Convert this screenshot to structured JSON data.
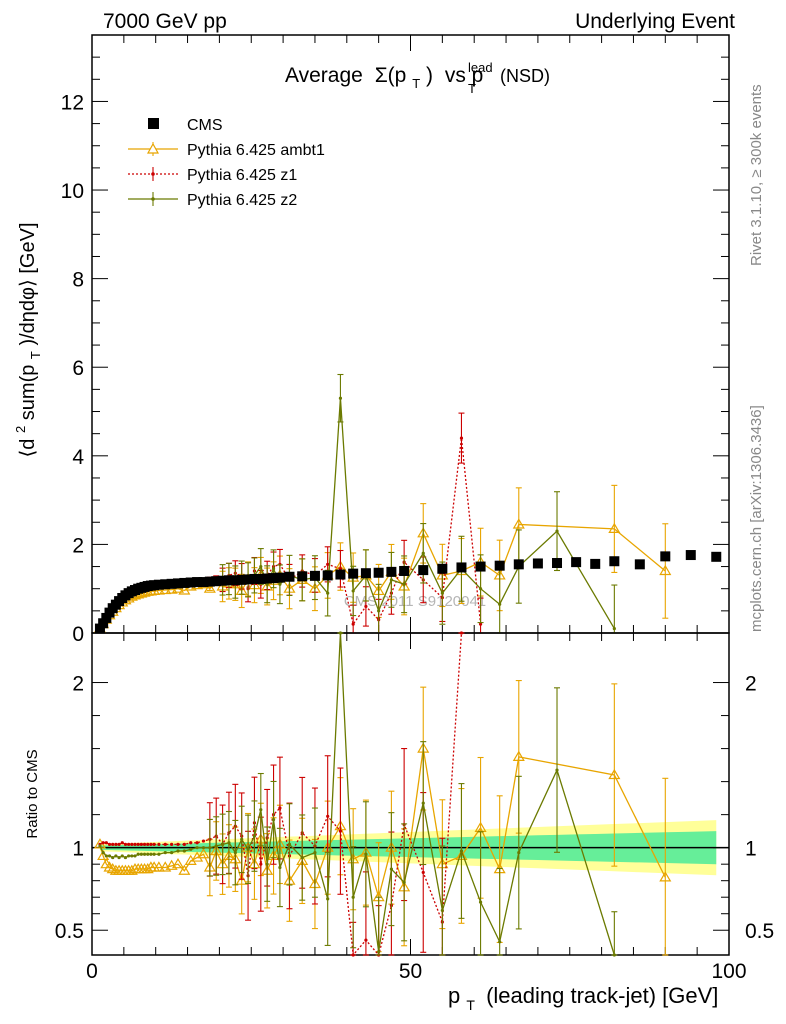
{
  "header": {
    "left": "7000 GeV pp",
    "right": "Underlying Event"
  },
  "side": {
    "rivet": "Rivet 3.1.10, ≥ 300k events",
    "source": "mcplots.cern.ch [arXiv:1306.3436]"
  },
  "watermark": "CMS 2011 S9120041",
  "chart_data": [
    {
      "type": "scatter",
      "title": {
        "text": "Average",
        "sigma": "Σ(p",
        "sub_t": "T",
        "close": ")",
        "vs": "vs p",
        "sup": "lead",
        "tail": "(NSD)"
      },
      "ylabel": {
        "open": "⟨d",
        "sup2": "2",
        "mid": " sum(p",
        "sub_t": "T",
        "tail": ")/dηdφ⟩ [GeV]"
      },
      "xlim": [
        0,
        100
      ],
      "ylim": [
        0,
        13.5
      ],
      "yticks": [
        "0",
        "2",
        "4",
        "6",
        "8",
        "10",
        "12"
      ],
      "legend_position": "top-left",
      "series": [
        {
          "name": "CMS",
          "color": "#000000",
          "marker": "square",
          "x": [
            1.25,
            1.75,
            2.25,
            2.75,
            3.25,
            3.75,
            4.25,
            4.75,
            5.25,
            5.75,
            6.25,
            6.75,
            7.25,
            7.75,
            8.25,
            8.75,
            9.25,
            9.75,
            10.5,
            11.5,
            12.5,
            13.5,
            14.5,
            15.5,
            16.5,
            17.5,
            18.5,
            19.5,
            20.5,
            21.5,
            22.5,
            23.5,
            24.5,
            25.5,
            26.5,
            27.5,
            28.5,
            29.5,
            31,
            33,
            35,
            37,
            39,
            41,
            43,
            45,
            47,
            49,
            52,
            55,
            58,
            61,
            64,
            67,
            70,
            73,
            76,
            79,
            82,
            86,
            90,
            94,
            98
          ],
          "y": [
            0.1,
            0.22,
            0.34,
            0.46,
            0.56,
            0.64,
            0.72,
            0.79,
            0.85,
            0.9,
            0.94,
            0.97,
            1.0,
            1.02,
            1.04,
            1.06,
            1.07,
            1.08,
            1.09,
            1.1,
            1.11,
            1.12,
            1.13,
            1.14,
            1.15,
            1.15,
            1.16,
            1.17,
            1.18,
            1.19,
            1.19,
            1.2,
            1.21,
            1.22,
            1.22,
            1.23,
            1.24,
            1.25,
            1.27,
            1.28,
            1.29,
            1.3,
            1.32,
            1.34,
            1.35,
            1.36,
            1.38,
            1.4,
            1.42,
            1.45,
            1.48,
            1.5,
            1.52,
            1.55,
            1.57,
            1.58,
            1.6,
            1.56,
            1.62,
            1.55,
            1.73,
            1.76,
            1.72
          ]
        },
        {
          "name": "Pythia 6.425 ambt1",
          "color": "#e8a500",
          "marker": "triangle",
          "x": [
            1.25,
            1.75,
            2.25,
            2.75,
            3.25,
            3.75,
            4.25,
            4.75,
            5.25,
            5.75,
            6.25,
            6.75,
            7.25,
            7.75,
            8.25,
            8.75,
            9.25,
            9.75,
            10.5,
            11.5,
            12.5,
            13.5,
            14.5,
            15.5,
            16.5,
            17.5,
            18.5,
            19.5,
            20.5,
            21.5,
            22.5,
            23.5,
            24.5,
            25.5,
            26.5,
            27.5,
            28.5,
            29.5,
            31,
            33,
            35,
            37,
            39,
            41,
            43,
            45,
            47,
            49,
            52,
            55,
            58,
            61,
            64,
            67,
            82,
            90
          ],
          "y": [
            0.1,
            0.2,
            0.3,
            0.4,
            0.48,
            0.56,
            0.63,
            0.69,
            0.74,
            0.78,
            0.82,
            0.85,
            0.87,
            0.89,
            0.91,
            0.93,
            0.94,
            0.95,
            0.96,
            0.97,
            0.98,
            1.0,
            0.96,
            1.05,
            1.08,
            1.1,
            1.0,
            1.15,
            1.05,
            1.12,
            1.1,
            0.95,
            1.22,
            1.08,
            1.3,
            1.05,
            1.18,
            1.3,
            1.0,
            1.2,
            1.0,
            1.3,
            1.5,
            1.25,
            1.3,
            0.95,
            1.38,
            1.05,
            2.25,
            1.3,
            1.4,
            1.6,
            1.3,
            2.45,
            2.35,
            1.4
          ]
        },
        {
          "name": "Pythia 6.425 z1",
          "color": "#cc0000",
          "marker": "dot",
          "x": [
            1.25,
            1.75,
            2.25,
            2.75,
            3.25,
            3.75,
            4.25,
            4.75,
            5.25,
            5.75,
            6.25,
            6.75,
            7.25,
            7.75,
            8.25,
            8.75,
            9.25,
            9.75,
            10.5,
            11.5,
            12.5,
            13.5,
            14.5,
            15.5,
            16.5,
            17.5,
            18.5,
            19.5,
            20.5,
            21.5,
            22.5,
            23.5,
            24.5,
            25.5,
            26.5,
            27.5,
            28.5,
            29.5,
            31,
            33,
            35,
            37,
            39,
            41,
            43,
            45,
            47,
            49,
            52,
            55,
            58,
            61
          ],
          "y": [
            0.1,
            0.23,
            0.35,
            0.47,
            0.57,
            0.66,
            0.74,
            0.81,
            0.87,
            0.92,
            0.96,
            0.99,
            1.02,
            1.04,
            1.06,
            1.08,
            1.09,
            1.1,
            1.11,
            1.12,
            1.13,
            1.14,
            1.15,
            1.17,
            1.18,
            1.2,
            1.22,
            1.25,
            1.2,
            1.3,
            1.35,
            1.28,
            1.0,
            1.4,
            1.1,
            1.3,
            1.5,
            1.55,
            1.2,
            1.4,
            1.3,
            1.55,
            1.45,
            0.2,
            0.6,
            0.3,
            0.9,
            1.6,
            1.2,
            0.8,
            4.4,
            0.2
          ]
        },
        {
          "name": "Pythia 6.425 z2",
          "color": "#6b7a00",
          "marker": "dot",
          "x": [
            1.25,
            1.75,
            2.25,
            2.75,
            3.25,
            3.75,
            4.25,
            4.75,
            5.25,
            5.75,
            6.25,
            6.75,
            7.25,
            7.75,
            8.25,
            8.75,
            9.25,
            9.75,
            10.5,
            11.5,
            12.5,
            13.5,
            14.5,
            15.5,
            16.5,
            17.5,
            18.5,
            19.5,
            20.5,
            21.5,
            22.5,
            23.5,
            24.5,
            25.5,
            26.5,
            27.5,
            28.5,
            29.5,
            31,
            33,
            35,
            37,
            39,
            41,
            43,
            45,
            47,
            49,
            52,
            55,
            58,
            61,
            64,
            67,
            73,
            82
          ],
          "y": [
            0.1,
            0.21,
            0.32,
            0.43,
            0.52,
            0.6,
            0.67,
            0.74,
            0.79,
            0.84,
            0.88,
            0.91,
            0.94,
            0.96,
            0.98,
            1.0,
            1.01,
            1.02,
            1.03,
            1.05,
            1.06,
            1.08,
            1.1,
            1.12,
            1.14,
            1.15,
            1.16,
            1.18,
            1.2,
            1.22,
            1.15,
            1.25,
            1.2,
            1.3,
            1.5,
            1.1,
            1.45,
            1.1,
            1.3,
            1.2,
            1.25,
            0.9,
            5.3,
            0.95,
            1.3,
            0.5,
            1.2,
            1.1,
            1.8,
            0.9,
            1.45,
            1.0,
            0.65,
            1.5,
            2.3,
            0.1
          ]
        }
      ]
    },
    {
      "type": "line",
      "ylabel": "Ratio to CMS",
      "xlabel": {
        "p": "p",
        "sub_t": "T",
        "tail": "(leading track-jet) [GeV]"
      },
      "xlim": [
        0,
        100
      ],
      "ylim": [
        0.35,
        2.3
      ],
      "yticks": [
        "0.5",
        "1",
        "2"
      ],
      "xticks": [
        "0",
        "50",
        "100"
      ],
      "reference": 1,
      "series": [
        {
          "name": "Pythia 6.425 ambt1",
          "color": "#e8a500",
          "x": [
            1.25,
            1.75,
            2.25,
            2.75,
            3.25,
            3.75,
            4.25,
            4.75,
            5.25,
            5.75,
            6.25,
            6.75,
            7.25,
            7.75,
            8.25,
            8.75,
            9.25,
            9.75,
            10.5,
            11.5,
            12.5,
            13.5,
            14.5,
            15.5,
            16.5,
            17.5,
            18.5,
            19.5,
            20.5,
            21.5,
            22.5,
            23.5,
            24.5,
            25.5,
            26.5,
            27.5,
            28.5,
            29.5,
            31,
            33,
            35,
            37,
            39,
            41,
            43,
            45,
            47,
            49,
            52,
            55,
            58,
            61,
            64,
            67,
            82,
            90
          ],
          "y": [
            1.02,
            0.95,
            0.9,
            0.88,
            0.87,
            0.86,
            0.86,
            0.86,
            0.86,
            0.86,
            0.86,
            0.87,
            0.87,
            0.87,
            0.87,
            0.87,
            0.88,
            0.88,
            0.88,
            0.88,
            0.89,
            0.9,
            0.86,
            0.92,
            0.94,
            0.96,
            0.88,
            0.98,
            0.9,
            0.95,
            0.93,
            0.8,
            1.0,
            0.9,
            1.05,
            0.86,
            0.95,
            1.02,
            0.8,
            0.92,
            0.78,
            1.0,
            1.13,
            0.93,
            0.97,
            0.7,
            1.0,
            0.76,
            1.6,
            0.9,
            0.95,
            1.12,
            0.87,
            1.55,
            1.44,
            0.82
          ]
        },
        {
          "name": "Pythia 6.425 z1",
          "color": "#cc0000",
          "x": [
            1.25,
            1.75,
            2.25,
            2.75,
            3.25,
            3.75,
            4.25,
            4.75,
            5.25,
            5.75,
            6.25,
            6.75,
            7.25,
            7.75,
            8.25,
            8.75,
            9.25,
            9.75,
            10.5,
            11.5,
            12.5,
            13.5,
            14.5,
            15.5,
            16.5,
            17.5,
            18.5,
            19.5,
            20.5,
            21.5,
            22.5,
            23.5,
            24.5,
            25.5,
            26.5,
            27.5,
            28.5,
            29.5,
            31,
            33,
            35,
            37,
            39,
            41,
            43,
            45,
            47,
            49,
            52,
            55,
            58
          ],
          "y": [
            1.02,
            1.03,
            1.03,
            1.02,
            1.02,
            1.02,
            1.02,
            1.03,
            1.02,
            1.02,
            1.02,
            1.02,
            1.02,
            1.02,
            1.02,
            1.02,
            1.02,
            1.02,
            1.02,
            1.02,
            1.02,
            1.02,
            1.02,
            1.03,
            1.03,
            1.04,
            1.05,
            1.07,
            1.02,
            1.09,
            1.13,
            1.07,
            0.83,
            1.15,
            0.9,
            1.06,
            1.2,
            1.24,
            0.95,
            1.09,
            1.01,
            1.19,
            1.1,
            0.15,
            0.44,
            0.22,
            0.65,
            1.14,
            0.85,
            0.55,
            2.97
          ]
        },
        {
          "name": "Pythia 6.425 z2",
          "color": "#6b7a00",
          "x": [
            1.25,
            1.75,
            2.25,
            2.75,
            3.25,
            3.75,
            4.25,
            4.75,
            5.25,
            5.75,
            6.25,
            6.75,
            7.25,
            7.75,
            8.25,
            8.75,
            9.25,
            9.75,
            10.5,
            11.5,
            12.5,
            13.5,
            14.5,
            15.5,
            16.5,
            17.5,
            18.5,
            19.5,
            20.5,
            21.5,
            22.5,
            23.5,
            24.5,
            25.5,
            26.5,
            27.5,
            28.5,
            29.5,
            31,
            33,
            35,
            37,
            39,
            41,
            43,
            45,
            47,
            49,
            52,
            55,
            58,
            61,
            64,
            67,
            73,
            82
          ],
          "y": [
            1.01,
            0.97,
            0.95,
            0.95,
            0.94,
            0.95,
            0.94,
            0.95,
            0.94,
            0.95,
            0.95,
            0.95,
            0.96,
            0.96,
            0.96,
            0.96,
            0.96,
            0.96,
            0.96,
            0.97,
            0.97,
            0.98,
            0.98,
            0.99,
            1.0,
            1.0,
            1.0,
            1.01,
            1.02,
            1.03,
            0.97,
            1.05,
            0.99,
            1.07,
            1.23,
            0.9,
            1.17,
            0.88,
            1.02,
            0.94,
            0.97,
            0.69,
            4.0,
            0.7,
            0.96,
            0.37,
            0.87,
            0.79,
            1.27,
            0.62,
            0.98,
            0.67,
            0.43,
            0.97,
            1.47,
            0.06
          ]
        }
      ]
    }
  ]
}
